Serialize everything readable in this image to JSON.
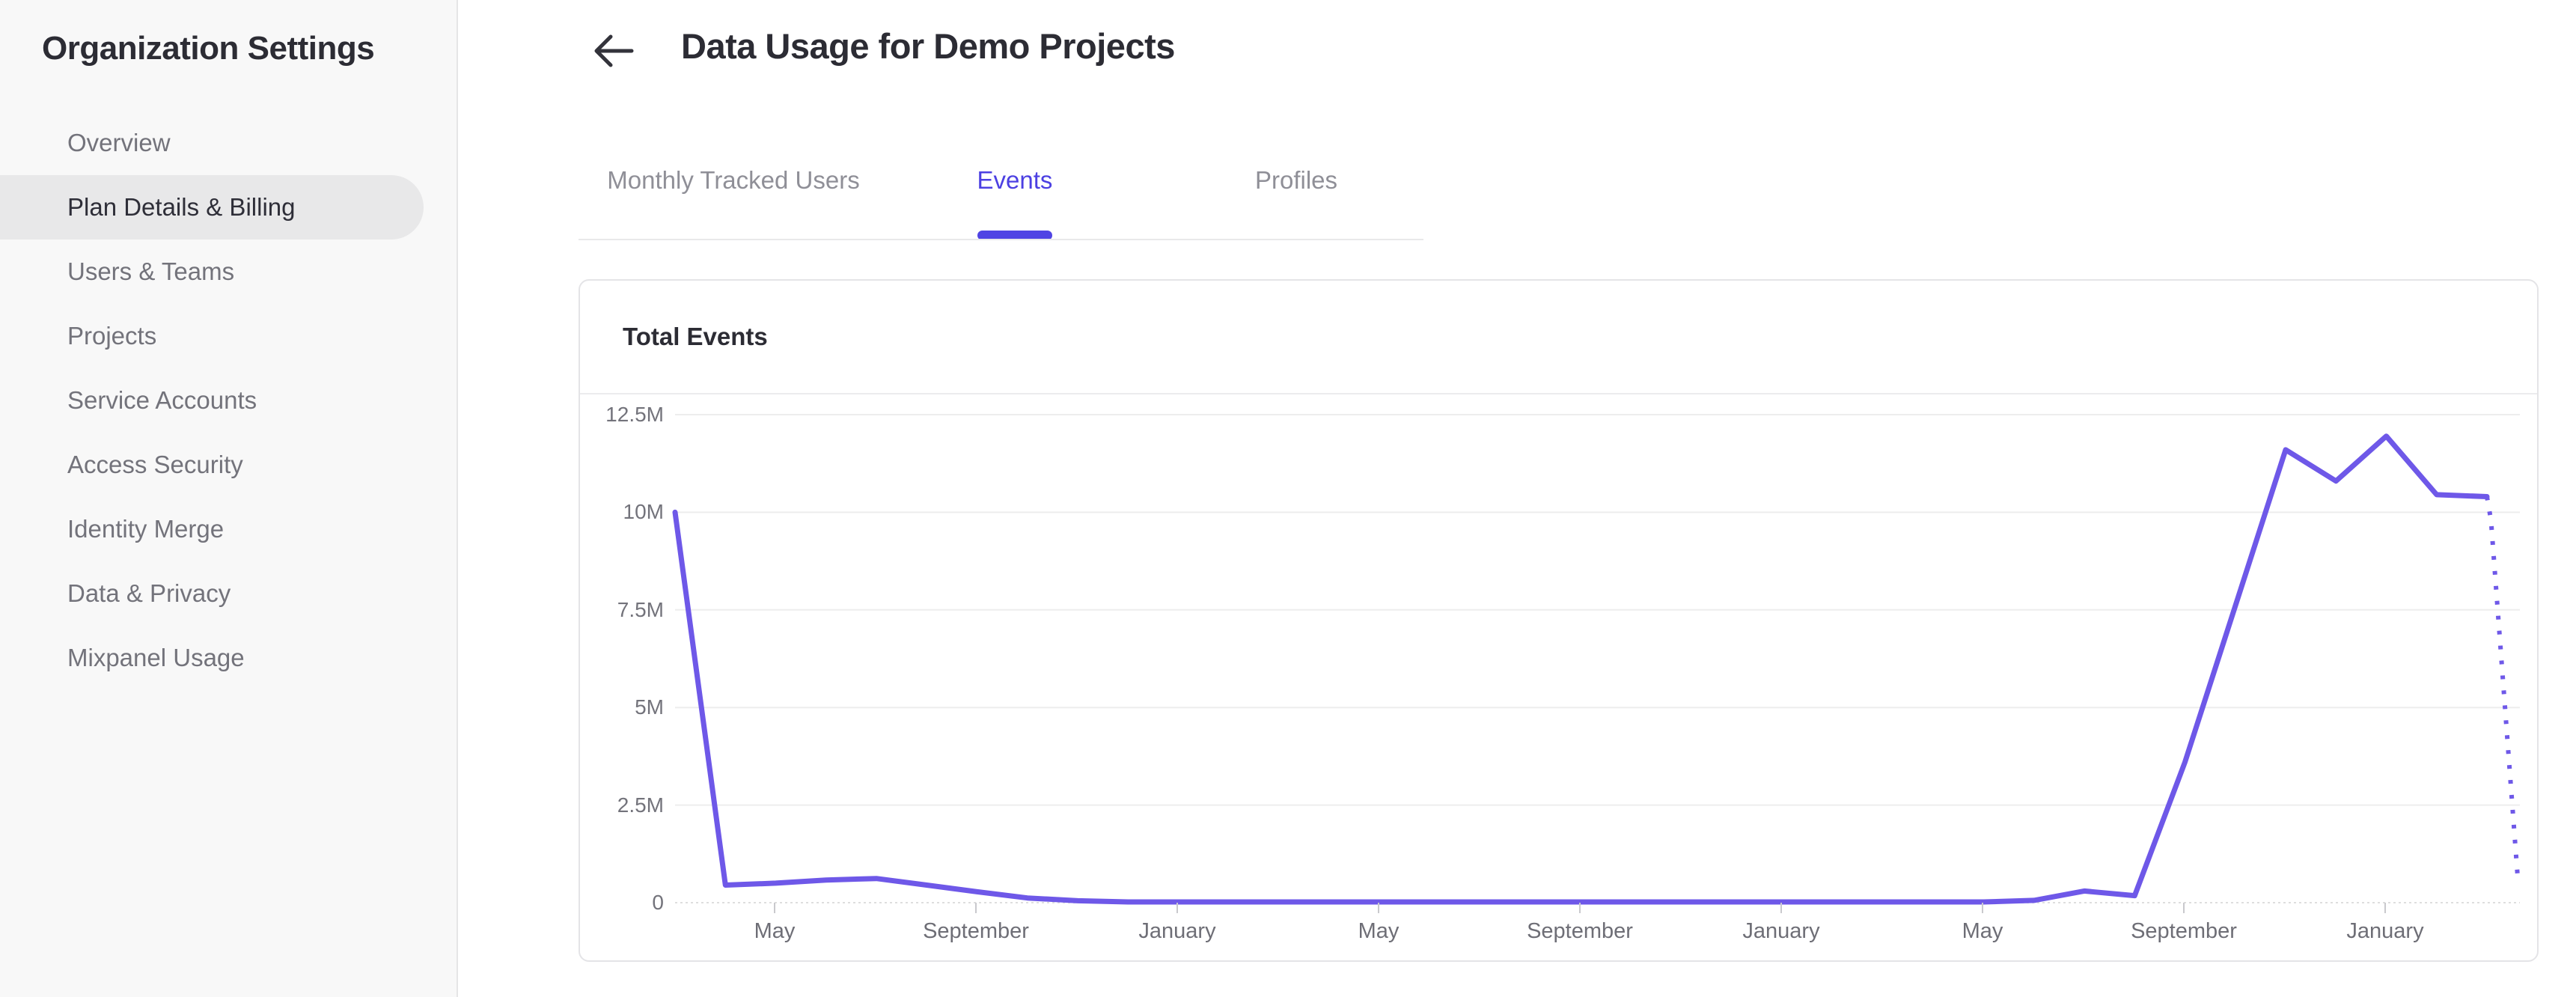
{
  "sidebar": {
    "title": "Organization Settings",
    "items": [
      {
        "label": "Overview",
        "active": false
      },
      {
        "label": "Plan Details & Billing",
        "active": true
      },
      {
        "label": "Users & Teams",
        "active": false
      },
      {
        "label": "Projects",
        "active": false
      },
      {
        "label": "Service Accounts",
        "active": false
      },
      {
        "label": "Access Security",
        "active": false
      },
      {
        "label": "Identity Merge",
        "active": false
      },
      {
        "label": "Data & Privacy",
        "active": false
      },
      {
        "label": "Mixpanel Usage",
        "active": false
      }
    ]
  },
  "header": {
    "back_icon": "left-arrow",
    "title": "Data Usage for Demo Projects"
  },
  "tabs": [
    {
      "label": "Monthly Tracked Users",
      "active": false
    },
    {
      "label": "Events",
      "active": true
    },
    {
      "label": "Profiles",
      "active": false
    }
  ],
  "colors": {
    "accent_purple": "#4c40e2",
    "tab_underline": "#5044e4",
    "chart_line": "#6e58e8",
    "grid_line": "#ededed",
    "axis_line": "#dedede",
    "tick_mark": "#c9c9cd",
    "axis_text": "#6e6e76",
    "sidebar_bg": "#f8f8f8",
    "sidebar_active_bg": "#e8e8e9",
    "text_dark": "#2c2c34",
    "text_gray": "#73737b"
  },
  "chart_data": {
    "type": "line",
    "title": "Total Events",
    "series_name": "Total Events",
    "legend": "none",
    "grid": true,
    "y_axis_labels": [
      "12.5M",
      "10M",
      "7.5M",
      "5M",
      "2.5M",
      "0"
    ],
    "y_max_millions": 12.5,
    "y_min_millions": 0,
    "x_tick_labels": [
      "May",
      "September",
      "January",
      "May",
      "September",
      "January",
      "May",
      "September",
      "January"
    ],
    "x_layout_note": "monthly points starting ~March of year 1; axis ticks fall every 4th month",
    "values_millions": [
      10,
      0.45,
      0.5,
      0.58,
      0.62,
      0.45,
      0.28,
      0.12,
      0.05,
      0.02,
      0.02,
      0.02,
      0.02,
      0.02,
      0.02,
      0.02,
      0.02,
      0.02,
      0.02,
      0.02,
      0.02,
      0.02,
      0.02,
      0.02,
      0.02,
      0.02,
      0.02,
      0.06,
      0.3,
      0.18,
      3.6,
      7.6,
      11.6,
      10.8,
      11.95,
      10.45,
      10.4
    ],
    "projected_dotted_tail": [
      {
        "month_offset": 0,
        "value_millions": 10.4
      },
      {
        "month_offset": 0.08,
        "value_millions": 9.8
      },
      {
        "month_offset": 0.62,
        "value_millions": 0.5
      }
    ]
  }
}
